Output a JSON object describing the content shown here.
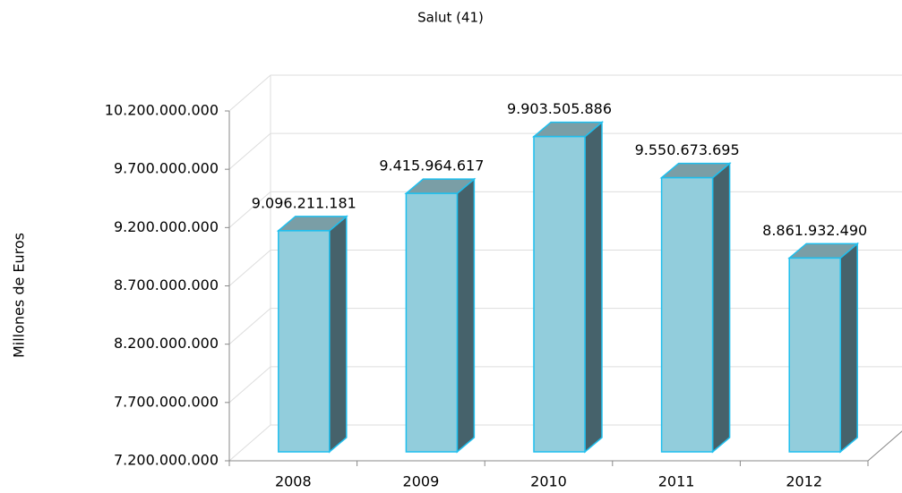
{
  "chart_data": {
    "type": "bar",
    "title": "Salut (41)",
    "y_label": "Millones de Euros",
    "categories": [
      "2008",
      "2009",
      "2010",
      "2011",
      "2012"
    ],
    "values": [
      9096211181,
      9415964617,
      9903505886,
      9550673695,
      8861932490
    ],
    "value_labels": [
      "9.096.211.181",
      "9.415.964.617",
      "9.903.505.886",
      "9.550.673.695",
      "8.861.932.490"
    ],
    "color": "#92cddc",
    "ylim": [
      7200000000,
      10200000000
    ],
    "yticks": [
      {
        "value": 7200000000,
        "label": "7.200.000.000"
      },
      {
        "value": 7700000000,
        "label": "7.700.000.000"
      },
      {
        "value": 8200000000,
        "label": "8.200.000.000"
      },
      {
        "value": 8700000000,
        "label": "8.700.000.000"
      },
      {
        "value": 9200000000,
        "label": "9.200.000.000"
      },
      {
        "value": 9700000000,
        "label": "9.700.000.000"
      },
      {
        "value": 10200000000,
        "label": "10.200.000.000"
      }
    ],
    "grid": true
  }
}
